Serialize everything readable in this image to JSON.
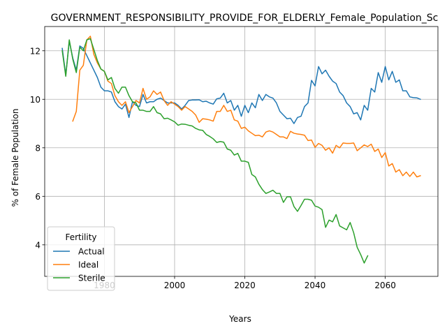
{
  "chart_data": {
    "type": "line",
    "title": "GOVERNMENT_RESPONSIBILITY_PROVIDE_FOR_ELDERLY_Female_Population_Sc",
    "xlabel": "Years",
    "ylabel": "% of Female Population",
    "xlim": [
      1963,
      2075
    ],
    "ylim": [
      2.7,
      13.0
    ],
    "xticks": [
      1980,
      2000,
      2020,
      2040,
      2060
    ],
    "yticks": [
      4,
      6,
      8,
      10,
      12
    ],
    "grid": true,
    "legend": {
      "title": "Fertility",
      "placement": "lower-left"
    },
    "series": [
      {
        "name": "Actual",
        "color": "#1f77b4",
        "points": [
          [
            1968,
            12.1
          ],
          [
            1969,
            11.0
          ],
          [
            1970,
            12.4
          ],
          [
            1971,
            11.7
          ],
          [
            1972,
            11.2
          ],
          [
            1973,
            12.2
          ],
          [
            1974,
            12.1
          ],
          [
            1975,
            11.8
          ],
          [
            1976,
            11.5
          ],
          [
            1977,
            11.2
          ],
          [
            1978,
            10.9
          ],
          [
            1979,
            10.5
          ],
          [
            1980,
            10.35
          ],
          [
            1981,
            10.35
          ],
          [
            1982,
            10.3
          ],
          [
            1983,
            9.9
          ],
          [
            1984,
            9.7
          ],
          [
            1985,
            9.6
          ],
          [
            1986,
            9.8
          ],
          [
            1987,
            9.25
          ],
          [
            1988,
            9.9
          ],
          [
            1989,
            9.75
          ],
          [
            1990,
            9.7
          ],
          [
            1991,
            10.2
          ],
          [
            1992,
            9.85
          ],
          [
            1993,
            9.9
          ],
          [
            1994,
            9.9
          ],
          [
            1995,
            10.0
          ],
          [
            1996,
            10.05
          ],
          [
            1997,
            9.95
          ],
          [
            1998,
            9.85
          ],
          [
            1999,
            9.85
          ],
          [
            2000,
            9.85
          ],
          [
            2001,
            9.75
          ],
          [
            2002,
            9.6
          ],
          [
            2003,
            9.75
          ],
          [
            2004,
            9.95
          ],
          [
            2005,
            9.97
          ],
          [
            2006,
            9.97
          ],
          [
            2007,
            9.98
          ],
          [
            2008,
            9.9
          ],
          [
            2009,
            9.92
          ],
          [
            2010,
            9.85
          ],
          [
            2011,
            9.8
          ],
          [
            2012,
            10.02
          ],
          [
            2013,
            10.05
          ],
          [
            2014,
            10.25
          ],
          [
            2015,
            9.85
          ],
          [
            2016,
            9.95
          ],
          [
            2017,
            9.55
          ],
          [
            2018,
            9.75
          ],
          [
            2019,
            9.3
          ],
          [
            2020,
            9.75
          ],
          [
            2021,
            9.45
          ],
          [
            2022,
            9.85
          ],
          [
            2023,
            9.65
          ],
          [
            2024,
            10.2
          ],
          [
            2025,
            9.95
          ],
          [
            2026,
            10.2
          ],
          [
            2027,
            10.1
          ],
          [
            2028,
            10.05
          ],
          [
            2029,
            9.85
          ],
          [
            2030,
            9.5
          ],
          [
            2031,
            9.35
          ],
          [
            2032,
            9.2
          ],
          [
            2033,
            9.22
          ],
          [
            2034,
            9.0
          ],
          [
            2035,
            9.25
          ],
          [
            2036,
            9.3
          ],
          [
            2037,
            9.7
          ],
          [
            2038,
            9.85
          ],
          [
            2039,
            10.78
          ],
          [
            2040,
            10.55
          ],
          [
            2041,
            11.35
          ],
          [
            2042,
            11.05
          ],
          [
            2043,
            11.2
          ],
          [
            2044,
            10.95
          ],
          [
            2045,
            10.75
          ],
          [
            2046,
            10.65
          ],
          [
            2047,
            10.3
          ],
          [
            2048,
            10.15
          ],
          [
            2049,
            9.85
          ],
          [
            2050,
            9.7
          ],
          [
            2051,
            9.4
          ],
          [
            2052,
            9.45
          ],
          [
            2053,
            9.15
          ],
          [
            2054,
            9.75
          ],
          [
            2055,
            9.55
          ],
          [
            2056,
            10.45
          ],
          [
            2057,
            10.3
          ],
          [
            2058,
            11.1
          ],
          [
            2059,
            10.7
          ],
          [
            2060,
            11.35
          ],
          [
            2061,
            10.8
          ],
          [
            2062,
            11.15
          ],
          [
            2063,
            10.7
          ],
          [
            2064,
            10.8
          ],
          [
            2065,
            10.35
          ],
          [
            2066,
            10.35
          ],
          [
            2067,
            10.1
          ],
          [
            2068,
            10.07
          ],
          [
            2069,
            10.06
          ],
          [
            2070,
            10.0
          ]
        ]
      },
      {
        "name": "Ideal",
        "color": "#ff7f0e",
        "points": [
          [
            1971,
            9.1
          ],
          [
            1972,
            9.5
          ],
          [
            1973,
            11.2
          ],
          [
            1974,
            11.4
          ],
          [
            1975,
            12.45
          ],
          [
            1976,
            12.6
          ],
          [
            1977,
            11.85
          ],
          [
            1978,
            11.5
          ],
          [
            1979,
            11.25
          ],
          [
            1980,
            11.15
          ],
          [
            1981,
            10.75
          ],
          [
            1982,
            10.65
          ],
          [
            1983,
            10.15
          ],
          [
            1984,
            9.9
          ],
          [
            1985,
            9.75
          ],
          [
            1986,
            9.9
          ],
          [
            1987,
            9.45
          ],
          [
            1988,
            9.7
          ],
          [
            1989,
            9.95
          ],
          [
            1990,
            9.85
          ],
          [
            1991,
            10.45
          ],
          [
            1992,
            10.0
          ],
          [
            1993,
            10.1
          ],
          [
            1994,
            10.35
          ],
          [
            1995,
            10.2
          ],
          [
            1996,
            10.3
          ],
          [
            1997,
            9.95
          ],
          [
            1998,
            9.75
          ],
          [
            1999,
            9.9
          ],
          [
            2000,
            9.8
          ],
          [
            2001,
            9.7
          ],
          [
            2002,
            9.55
          ],
          [
            2003,
            9.7
          ],
          [
            2004,
            9.6
          ],
          [
            2005,
            9.5
          ],
          [
            2006,
            9.35
          ],
          [
            2007,
            9.05
          ],
          [
            2008,
            9.2
          ],
          [
            2009,
            9.18
          ],
          [
            2010,
            9.15
          ],
          [
            2011,
            9.1
          ],
          [
            2012,
            9.5
          ],
          [
            2013,
            9.5
          ],
          [
            2014,
            9.75
          ],
          [
            2015,
            9.5
          ],
          [
            2016,
            9.55
          ],
          [
            2017,
            9.15
          ],
          [
            2018,
            9.1
          ],
          [
            2019,
            8.8
          ],
          [
            2020,
            8.85
          ],
          [
            2021,
            8.7
          ],
          [
            2022,
            8.6
          ],
          [
            2023,
            8.5
          ],
          [
            2024,
            8.52
          ],
          [
            2025,
            8.45
          ],
          [
            2026,
            8.65
          ],
          [
            2027,
            8.7
          ],
          [
            2028,
            8.65
          ],
          [
            2029,
            8.55
          ],
          [
            2030,
            8.45
          ],
          [
            2031,
            8.45
          ],
          [
            2032,
            8.38
          ],
          [
            2033,
            8.68
          ],
          [
            2034,
            8.6
          ],
          [
            2035,
            8.57
          ],
          [
            2036,
            8.55
          ],
          [
            2037,
            8.52
          ],
          [
            2038,
            8.3
          ],
          [
            2039,
            8.32
          ],
          [
            2040,
            8.02
          ],
          [
            2041,
            8.18
          ],
          [
            2042,
            8.1
          ],
          [
            2043,
            7.9
          ],
          [
            2044,
            8.0
          ],
          [
            2045,
            7.78
          ],
          [
            2046,
            8.1
          ],
          [
            2047,
            8.0
          ],
          [
            2048,
            8.2
          ],
          [
            2049,
            8.18
          ],
          [
            2050,
            8.18
          ],
          [
            2051,
            8.2
          ],
          [
            2052,
            7.88
          ],
          [
            2053,
            8.0
          ],
          [
            2054,
            8.12
          ],
          [
            2055,
            8.05
          ],
          [
            2056,
            8.15
          ],
          [
            2057,
            7.85
          ],
          [
            2058,
            7.95
          ],
          [
            2059,
            7.6
          ],
          [
            2060,
            7.8
          ],
          [
            2061,
            7.25
          ],
          [
            2062,
            7.35
          ],
          [
            2063,
            7.0
          ],
          [
            2064,
            7.1
          ],
          [
            2065,
            6.85
          ],
          [
            2066,
            7.0
          ],
          [
            2067,
            6.82
          ],
          [
            2068,
            7.0
          ],
          [
            2069,
            6.8
          ],
          [
            2070,
            6.85
          ]
        ]
      },
      {
        "name": "Sterile",
        "color": "#2ca02c",
        "points": [
          [
            1968,
            12.0
          ],
          [
            1969,
            10.95
          ],
          [
            1970,
            12.45
          ],
          [
            1971,
            11.65
          ],
          [
            1972,
            11.1
          ],
          [
            1973,
            12.15
          ],
          [
            1974,
            12.0
          ],
          [
            1975,
            12.45
          ],
          [
            1976,
            12.5
          ],
          [
            1977,
            12.05
          ],
          [
            1978,
            11.6
          ],
          [
            1979,
            11.25
          ],
          [
            1980,
            11.15
          ],
          [
            1981,
            10.8
          ],
          [
            1982,
            10.9
          ],
          [
            1983,
            10.45
          ],
          [
            1984,
            10.25
          ],
          [
            1985,
            10.5
          ],
          [
            1986,
            10.5
          ],
          [
            1987,
            10.15
          ],
          [
            1988,
            9.9
          ],
          [
            1989,
            9.85
          ],
          [
            1990,
            9.55
          ],
          [
            1991,
            9.55
          ],
          [
            1992,
            9.5
          ],
          [
            1993,
            9.5
          ],
          [
            1994,
            9.7
          ],
          [
            1995,
            9.45
          ],
          [
            1996,
            9.4
          ],
          [
            1997,
            9.2
          ],
          [
            1998,
            9.22
          ],
          [
            1999,
            9.15
          ],
          [
            2000,
            9.07
          ],
          [
            2001,
            8.93
          ],
          [
            2002,
            8.98
          ],
          [
            2003,
            8.97
          ],
          [
            2004,
            8.93
          ],
          [
            2005,
            8.9
          ],
          [
            2006,
            8.8
          ],
          [
            2007,
            8.74
          ],
          [
            2008,
            8.72
          ],
          [
            2009,
            8.55
          ],
          [
            2010,
            8.47
          ],
          [
            2011,
            8.37
          ],
          [
            2012,
            8.22
          ],
          [
            2013,
            8.26
          ],
          [
            2014,
            8.23
          ],
          [
            2015,
            7.95
          ],
          [
            2016,
            7.9
          ],
          [
            2017,
            7.7
          ],
          [
            2018,
            7.77
          ],
          [
            2019,
            7.45
          ],
          [
            2020,
            7.45
          ],
          [
            2021,
            7.4
          ],
          [
            2022,
            6.9
          ],
          [
            2023,
            6.8
          ],
          [
            2024,
            6.5
          ],
          [
            2025,
            6.28
          ],
          [
            2026,
            6.12
          ],
          [
            2027,
            6.18
          ],
          [
            2028,
            6.25
          ],
          [
            2029,
            6.12
          ],
          [
            2030,
            6.12
          ],
          [
            2031,
            5.75
          ],
          [
            2032,
            5.98
          ],
          [
            2033,
            5.98
          ],
          [
            2034,
            5.58
          ],
          [
            2035,
            5.38
          ],
          [
            2036,
            5.62
          ],
          [
            2037,
            5.88
          ],
          [
            2038,
            5.88
          ],
          [
            2039,
            5.84
          ],
          [
            2040,
            5.6
          ],
          [
            2041,
            5.55
          ],
          [
            2042,
            5.45
          ],
          [
            2043,
            4.72
          ],
          [
            2044,
            5.02
          ],
          [
            2045,
            4.95
          ],
          [
            2046,
            5.25
          ],
          [
            2047,
            4.78
          ],
          [
            2048,
            4.7
          ],
          [
            2049,
            4.62
          ],
          [
            2050,
            4.92
          ],
          [
            2051,
            4.5
          ],
          [
            2052,
            3.9
          ],
          [
            2053,
            3.6
          ],
          [
            2054,
            3.25
          ],
          [
            2055,
            3.55
          ]
        ]
      }
    ]
  }
}
